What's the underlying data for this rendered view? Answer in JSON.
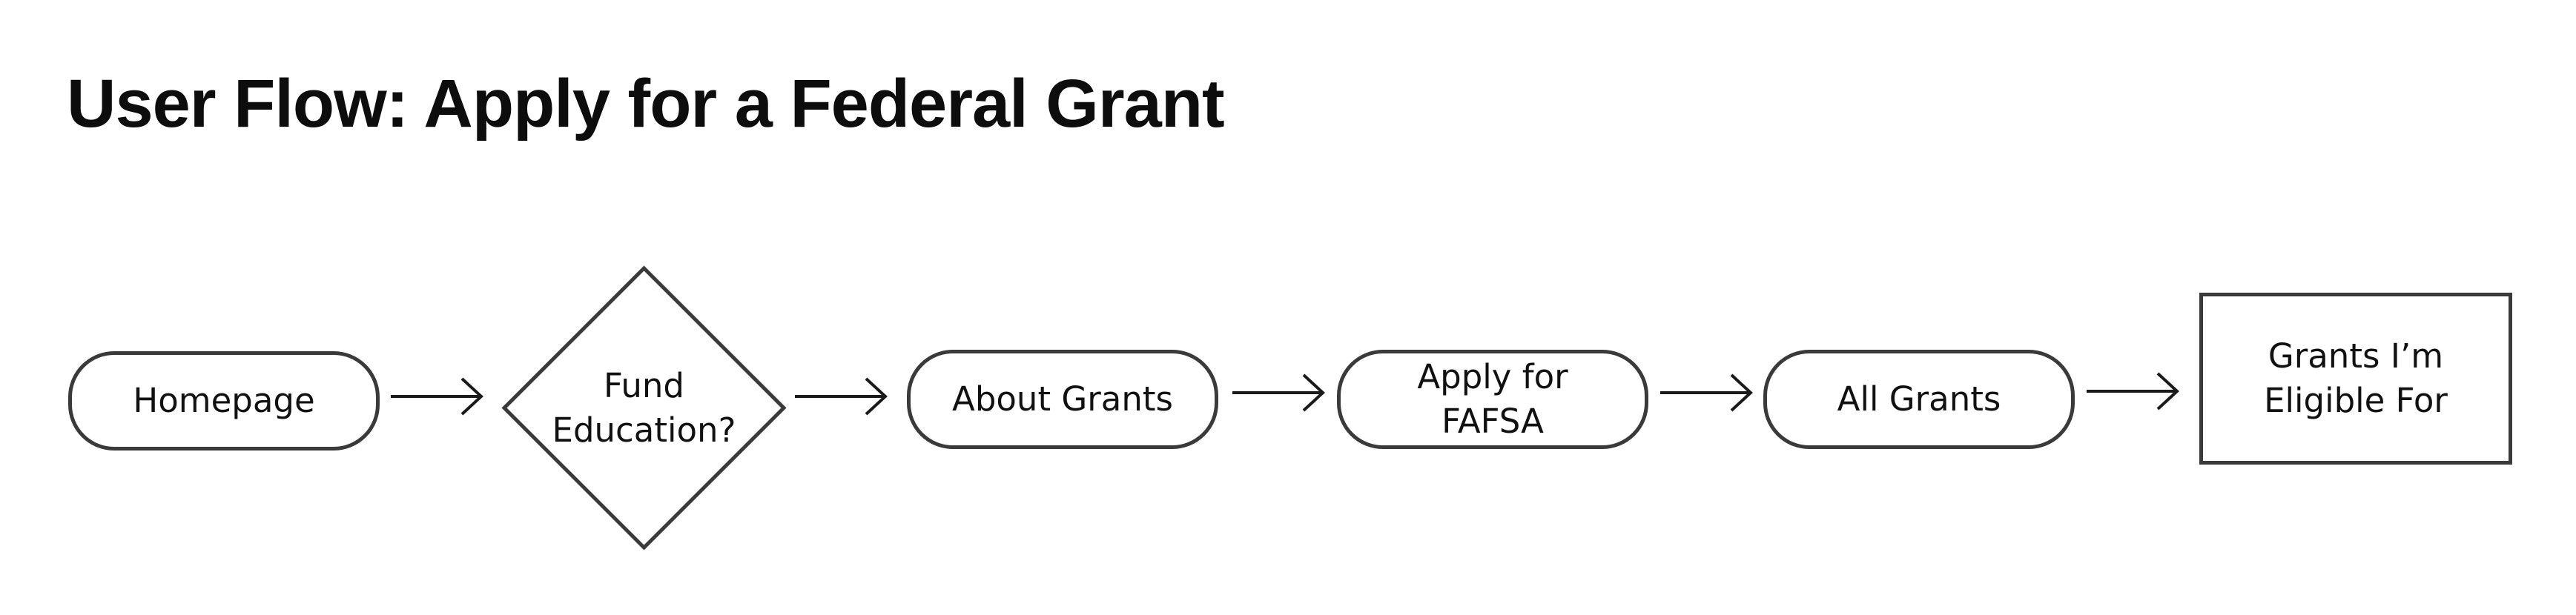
{
  "title": "User Flow: Apply for a Federal Grant",
  "colors": {
    "stroke": "#3a3a3a",
    "text": "#111111",
    "background": "#ffffff"
  },
  "nodes": [
    {
      "label": "Homepage",
      "shape": "terminal"
    },
    {
      "label": "Fund\nEducation?",
      "shape": "decision"
    },
    {
      "label": "About Grants",
      "shape": "terminal"
    },
    {
      "label": "Apply for\nFAFSA",
      "shape": "terminal"
    },
    {
      "label": "All Grants",
      "shape": "terminal"
    },
    {
      "label": "Grants I’m\nEligible For",
      "shape": "process"
    }
  ],
  "edges": [
    {
      "from": "Homepage",
      "to": "Fund\nEducation?"
    },
    {
      "from": "Fund\nEducation?",
      "to": "About Grants"
    },
    {
      "from": "About Grants",
      "to": "Apply for\nFAFSA"
    },
    {
      "from": "Apply for\nFAFSA",
      "to": "All Grants"
    },
    {
      "from": "All Grants",
      "to": "Grants I’m\nEligible For"
    }
  ]
}
